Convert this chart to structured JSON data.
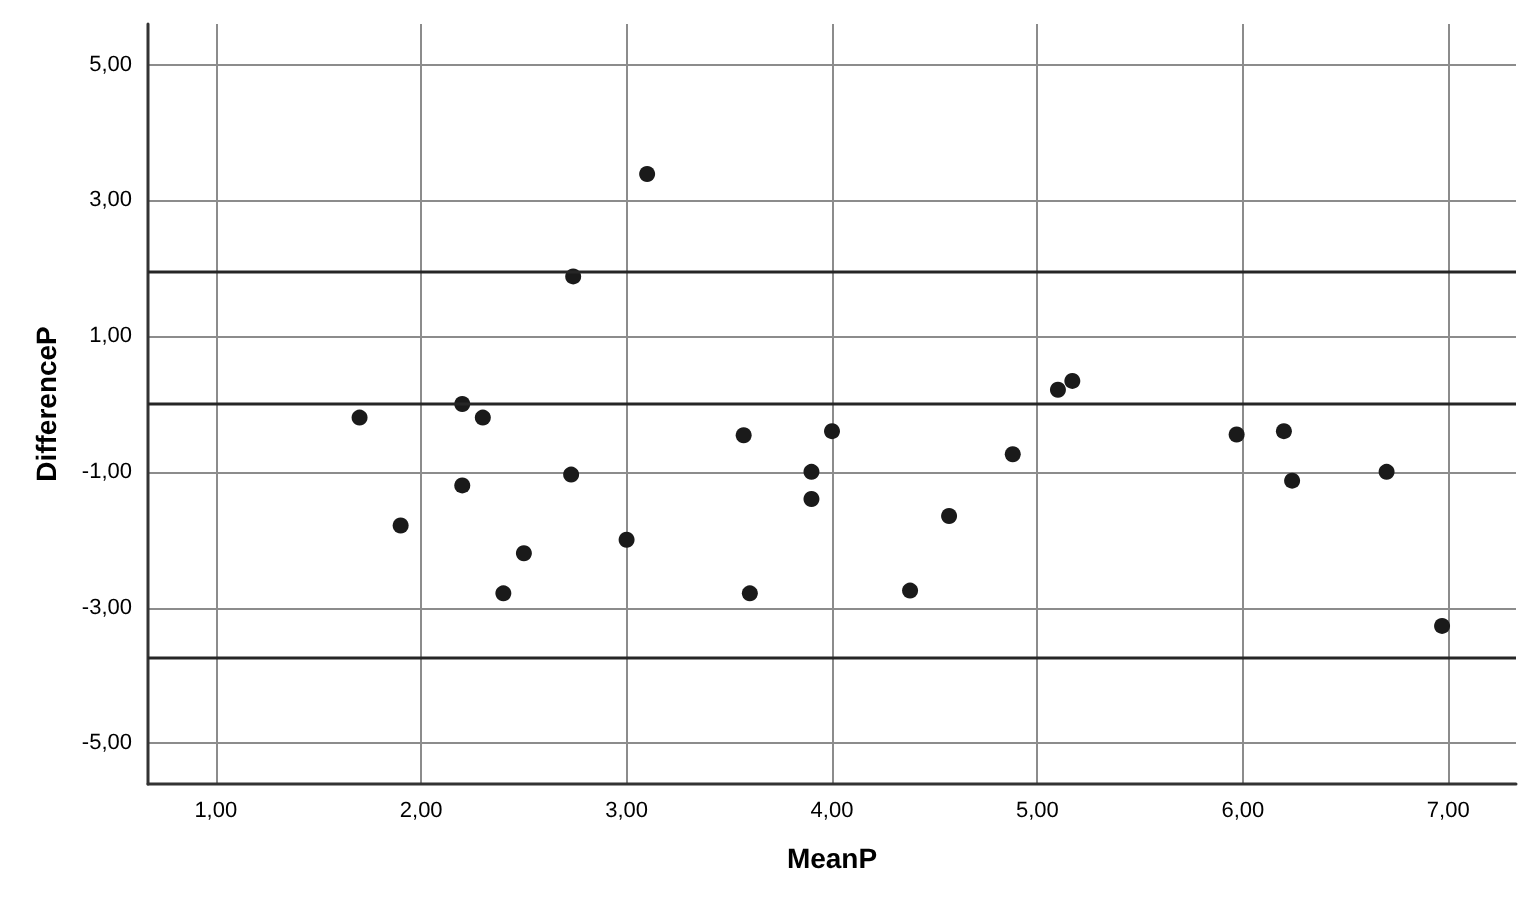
{
  "chart_data": {
    "type": "scatter",
    "xlabel": "MeanP",
    "ylabel": "DifferenceP",
    "series": [
      {
        "color": "#1a1a1a",
        "x": [
          1.7,
          2.2,
          2.3,
          1.9,
          2.2,
          2.73,
          2.5,
          2.4,
          3.0,
          3.57,
          3.6,
          3.9,
          3.9,
          4.0,
          4.57,
          4.38,
          4.88,
          5.1,
          5.17,
          5.97,
          6.2,
          6.24,
          6.7,
          6.97,
          2.74,
          3.1
        ],
        "values": [
          -0.2,
          0.0,
          -0.2,
          -1.79,
          -1.2,
          -1.04,
          -2.2,
          -2.79,
          -2.0,
          -0.46,
          -2.79,
          -1.0,
          -1.4,
          -0.4,
          -1.65,
          -2.75,
          -0.74,
          0.21,
          0.34,
          -0.45,
          -0.4,
          -1.13,
          -1.0,
          -3.27,
          1.88,
          3.39
        ]
      }
    ],
    "xlim": [
      0.67,
      7.33
    ],
    "xticks": [
      {
        "value": 1,
        "label": "1,00"
      },
      {
        "value": 2,
        "label": "2,00"
      },
      {
        "value": 3,
        "label": "3,00"
      },
      {
        "value": 4,
        "label": "4,00"
      },
      {
        "value": 5,
        "label": "5,00"
      },
      {
        "value": 6,
        "label": "6,00"
      },
      {
        "value": 7,
        "label": "7,00"
      }
    ],
    "ylim": [
      -5.6,
      5.6
    ],
    "yticks": [
      {
        "value": -5,
        "label": "-5,00"
      },
      {
        "value": -3,
        "label": "-3,00"
      },
      {
        "value": -1,
        "label": "-1,00"
      },
      {
        "value": 1,
        "label": "1,00"
      },
      {
        "value": 3,
        "label": "3,00"
      },
      {
        "value": 5,
        "label": "5,00"
      }
    ],
    "ref_lines": [
      {
        "axis": "y",
        "value": 1.96,
        "color": "#262626"
      },
      {
        "axis": "y",
        "value": 0,
        "color": "#262626"
      },
      {
        "axis": "y",
        "value": -3.73,
        "color": "#262626"
      }
    ],
    "grid": true,
    "marker": "circle"
  }
}
